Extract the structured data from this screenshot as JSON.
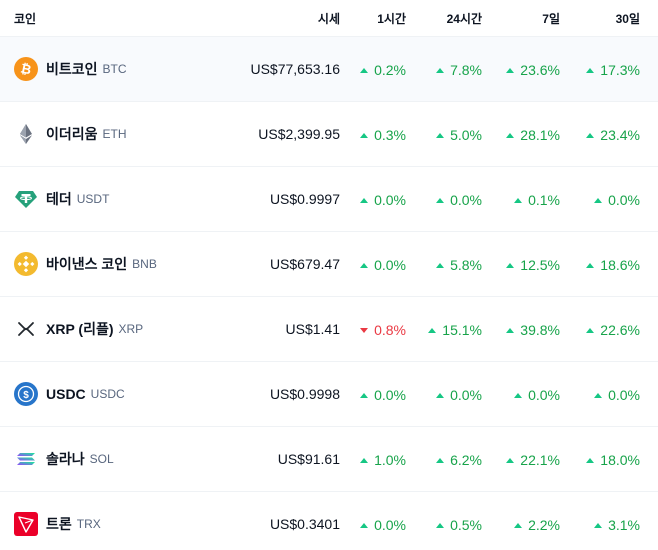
{
  "header": {
    "coin": "코인",
    "price": "시세",
    "h1": "1시간",
    "h24": "24시간",
    "d7": "7일",
    "d30": "30일"
  },
  "coins": [
    {
      "name": "비트코인",
      "symbol": "BTC",
      "price": "US$77,653.16",
      "h1": "0.2%",
      "h24": "7.8%",
      "d7": "23.6%",
      "d30": "17.3%",
      "icon": "bitcoin-icon",
      "color": "#f7931a"
    },
    {
      "name": "이더리움",
      "symbol": "ETH",
      "price": "US$2,399.95",
      "h1": "0.3%",
      "h24": "5.0%",
      "d7": "28.1%",
      "d30": "23.4%",
      "icon": "ethereum-icon",
      "color": "#627eea"
    },
    {
      "name": "테더",
      "symbol": "USDT",
      "price": "US$0.9997",
      "h1": "0.0%",
      "h24": "0.0%",
      "d7": "0.1%",
      "d30": "0.0%",
      "icon": "tether-icon",
      "color": "#26a17b"
    },
    {
      "name": "바이낸스 코인",
      "symbol": "BNB",
      "price": "US$679.47",
      "h1": "0.0%",
      "h24": "5.8%",
      "d7": "12.5%",
      "d30": "18.6%",
      "icon": "bnb-icon",
      "color": "#f3ba2f"
    },
    {
      "name": "XRP (리플)",
      "symbol": "XRP",
      "price": "US$1.41",
      "h1": "0.8%",
      "h24": "15.1%",
      "d7": "39.8%",
      "d30": "22.6%",
      "icon": "xrp-icon",
      "color": "#23292f"
    },
    {
      "name": "USDC",
      "symbol": "USDC",
      "price": "US$0.9998",
      "h1": "0.0%",
      "h24": "0.0%",
      "d7": "0.0%",
      "d30": "0.0%",
      "icon": "usdc-icon",
      "color": "#2775ca"
    },
    {
      "name": "솔라나",
      "symbol": "SOL",
      "price": "US$91.61",
      "h1": "1.0%",
      "h24": "6.2%",
      "d7": "22.1%",
      "d30": "18.0%",
      "icon": "solana-icon",
      "color": "#9945ff"
    },
    {
      "name": "트론",
      "symbol": "TRX",
      "price": "US$0.3401",
      "h1": "0.0%",
      "h24": "0.5%",
      "d7": "2.2%",
      "d30": "3.1%",
      "icon": "tron-icon",
      "color": "#eb0029"
    }
  ],
  "directions": {
    "coins.0": [
      "up",
      "up",
      "up",
      "up"
    ],
    "coins.1": [
      "up",
      "up",
      "up",
      "up"
    ],
    "coins.2": [
      "up",
      "up",
      "up",
      "up"
    ],
    "coins.3": [
      "up",
      "up",
      "up",
      "up"
    ],
    "coins.4": [
      "down",
      "up",
      "up",
      "up"
    ],
    "coins.5": [
      "up",
      "up",
      "up",
      "up"
    ],
    "coins.6": [
      "up",
      "up",
      "up",
      "up"
    ],
    "coins.7": [
      "up",
      "up",
      "up",
      "up"
    ]
  },
  "colors": {
    "up": "#17a34a",
    "down": "#ea3943",
    "hover_row": "#f8fafd"
  }
}
